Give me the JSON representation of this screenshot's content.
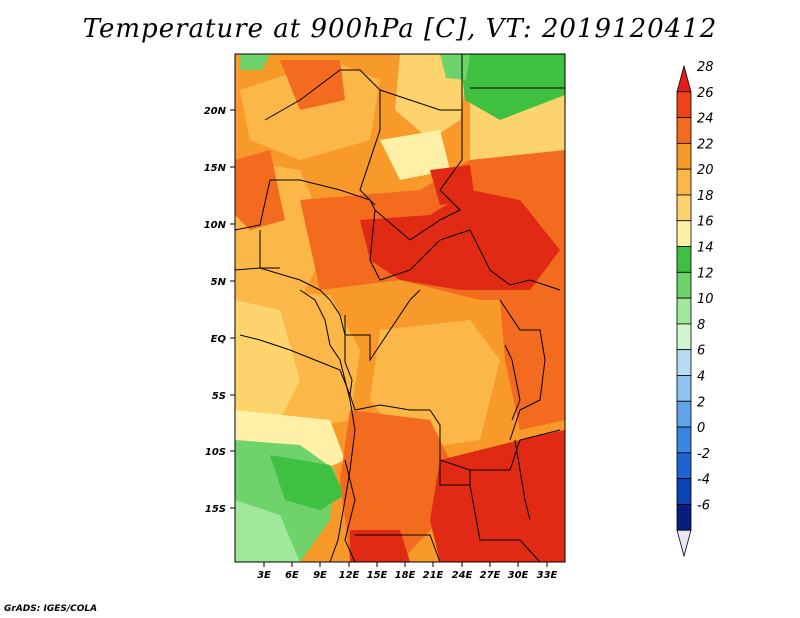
{
  "title": "Temperature at 900hPa [C], VT: 2019120412",
  "credit": "GrADS: IGES/COLA",
  "lat_ticks": [
    "20N",
    "15N",
    "10N",
    "5N",
    "EQ",
    "5S",
    "10S",
    "15S"
  ],
  "lon_ticks": [
    "3E",
    "6E",
    "9E",
    "12E",
    "15E",
    "18E",
    "21E",
    "24E",
    "27E",
    "30E",
    "33E"
  ],
  "colorbar": {
    "labels": [
      "28",
      "26",
      "24",
      "22",
      "20",
      "18",
      "16",
      "14",
      "12",
      "10",
      "8",
      "6",
      "4",
      "2",
      "0",
      "-2",
      "-4",
      "-6"
    ],
    "colors": [
      "#e41a1c",
      "#f0421a",
      "#f36b1e",
      "#f79a2a",
      "#fbb848",
      "#fdd36e",
      "#fff0a8",
      "#3fc041",
      "#6dd36a",
      "#a0e99b",
      "#d2f7ce",
      "#b9dcf5",
      "#8ec3ef",
      "#61a4e7",
      "#3a85de",
      "#1d64d1",
      "#0d44b5",
      "#061e7e",
      "#040a5a"
    ]
  },
  "colors": {
    "hot": "#e12a14",
    "warm": "#f36b1e",
    "orange": "#f79a2a",
    "light_orange": "#fbb848",
    "pale": "#fdd36e",
    "cream": "#fff0a8",
    "green": "#3fc041",
    "light_green": "#6dd36a"
  }
}
